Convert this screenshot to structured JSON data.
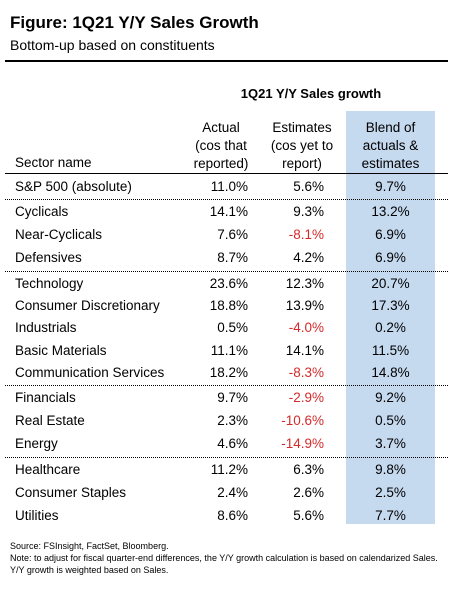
{
  "figure": {
    "title": "Figure: 1Q21 Y/Y Sales Growth",
    "subtitle": "Bottom-up based on constituents"
  },
  "table": {
    "group_header": "1Q21 Y/Y Sales growth",
    "columns": {
      "sector": "Sector name",
      "actual": [
        "Actual",
        "(cos that",
        "reported)"
      ],
      "estimates": [
        "Estimates",
        "(cos yet to",
        "report)"
      ],
      "blend": [
        "Blend of",
        "actuals &",
        "estimates"
      ]
    },
    "rows": [
      {
        "name": "S&P 500 (absolute)",
        "actual": "11.0%",
        "est": "5.6%",
        "blend": "9.7%"
      },
      {
        "name": "Cyclicals",
        "actual": "14.1%",
        "est": "9.3%",
        "blend": "13.2%"
      },
      {
        "name": "Near-Cyclicals",
        "actual": "7.6%",
        "est": "-8.1%",
        "blend": "6.9%"
      },
      {
        "name": "Defensives",
        "actual": "8.7%",
        "est": "4.2%",
        "blend": "6.9%"
      },
      {
        "name": "Technology",
        "actual": "23.6%",
        "est": "12.3%",
        "blend": "20.7%"
      },
      {
        "name": "Consumer Discretionary",
        "actual": "18.8%",
        "est": "13.9%",
        "blend": "17.3%"
      },
      {
        "name": "Industrials",
        "actual": "0.5%",
        "est": "-4.0%",
        "blend": "0.2%"
      },
      {
        "name": "Basic Materials",
        "actual": "11.1%",
        "est": "14.1%",
        "blend": "11.5%"
      },
      {
        "name": "Communication Services",
        "actual": "18.2%",
        "est": "-8.3%",
        "blend": "14.8%"
      },
      {
        "name": "Financials",
        "actual": "9.7%",
        "est": "-2.9%",
        "blend": "9.2%"
      },
      {
        "name": "Real Estate",
        "actual": "2.3%",
        "est": "-10.6%",
        "blend": "0.5%"
      },
      {
        "name": "Energy",
        "actual": "4.6%",
        "est": "-14.9%",
        "blend": "3.7%"
      },
      {
        "name": "Healthcare",
        "actual": "11.2%",
        "est": "6.3%",
        "blend": "9.8%"
      },
      {
        "name": "Consumer Staples",
        "actual": "2.4%",
        "est": "2.6%",
        "blend": "2.5%"
      },
      {
        "name": "Utilities",
        "actual": "8.6%",
        "est": "5.6%",
        "blend": "7.7%"
      }
    ]
  },
  "footnote": {
    "source": "Source: FSInsight, FactSet, Bloomberg.",
    "note": "Note: to adjust for fiscal quarter-end differences, the Y/Y growth calculation is based on calendarized Sales. Y/Y growth is weighted based on Sales."
  },
  "colors": {
    "blend_highlight": "#c5d9ef",
    "negative": "#d42a2a"
  }
}
